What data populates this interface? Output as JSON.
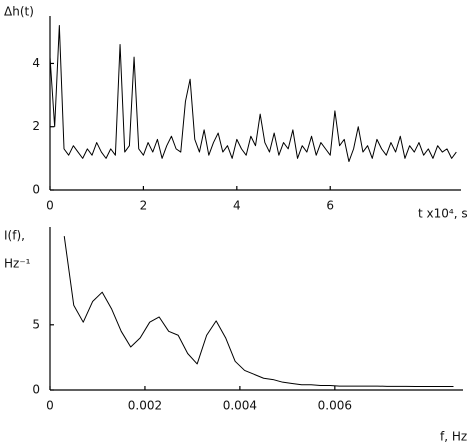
{
  "chart_data": [
    {
      "type": "line",
      "ylabel": "Δh(t)",
      "xlabel": "t x10⁴, s",
      "color": "#000000",
      "x": [
        0.0,
        0.1,
        0.2,
        0.3,
        0.4,
        0.5,
        0.6,
        0.7,
        0.8,
        0.9,
        1.0,
        1.1,
        1.2,
        1.3,
        1.4,
        1.5,
        1.6,
        1.7,
        1.8,
        1.9,
        2.0,
        2.1,
        2.2,
        2.3,
        2.4,
        2.5,
        2.6,
        2.7,
        2.8,
        2.9,
        3.0,
        3.1,
        3.2,
        3.3,
        3.4,
        3.5,
        3.6,
        3.7,
        3.8,
        3.9,
        4.0,
        4.1,
        4.2,
        4.3,
        4.4,
        4.5,
        4.6,
        4.7,
        4.8,
        4.9,
        5.0,
        5.1,
        5.2,
        5.3,
        5.4,
        5.5,
        5.6,
        5.7,
        5.8,
        5.9,
        6.0,
        6.1,
        6.2,
        6.3,
        6.4,
        6.5,
        6.6,
        6.7,
        6.8,
        6.9,
        7.0,
        7.1,
        7.2,
        7.3,
        7.4,
        7.5,
        7.6,
        7.7,
        7.8,
        7.9,
        8.0,
        8.1,
        8.2,
        8.3,
        8.4,
        8.5,
        8.6,
        8.7
      ],
      "values": [
        4.2,
        2.0,
        5.2,
        1.3,
        1.1,
        1.4,
        1.2,
        1.0,
        1.3,
        1.1,
        1.5,
        1.2,
        1.0,
        1.3,
        1.1,
        4.6,
        1.2,
        1.4,
        4.2,
        1.3,
        1.1,
        1.5,
        1.2,
        1.6,
        1.0,
        1.4,
        1.7,
        1.3,
        1.2,
        2.8,
        3.5,
        1.6,
        1.2,
        1.9,
        1.1,
        1.5,
        1.8,
        1.2,
        1.4,
        1.0,
        1.6,
        1.3,
        1.1,
        1.7,
        1.4,
        2.4,
        1.5,
        1.2,
        1.8,
        1.1,
        1.5,
        1.3,
        1.9,
        1.0,
        1.4,
        1.2,
        1.7,
        1.1,
        1.5,
        1.3,
        1.1,
        2.5,
        1.4,
        1.6,
        0.9,
        1.3,
        2.0,
        1.2,
        1.4,
        1.0,
        1.6,
        1.3,
        1.1,
        1.5,
        1.2,
        1.7,
        1.0,
        1.4,
        1.2,
        1.5,
        1.1,
        1.3,
        1.0,
        1.4,
        1.2,
        1.3,
        1.0,
        1.2
      ],
      "xlim": [
        0,
        8.8
      ],
      "ylim": [
        0,
        5.5
      ],
      "xticks": [
        0,
        2,
        4,
        6
      ],
      "yticks": [
        0,
        2,
        4
      ]
    },
    {
      "type": "line",
      "ylabel": "I(f),",
      "ylabel_unit": "Hz⁻¹",
      "xlabel": "f, Hz",
      "color": "#000000",
      "x": [
        0.0003,
        0.0005,
        0.0007,
        0.0009,
        0.0011,
        0.0013,
        0.0015,
        0.0017,
        0.0019,
        0.0021,
        0.0023,
        0.0025,
        0.0027,
        0.0029,
        0.0031,
        0.0033,
        0.0035,
        0.0037,
        0.0039,
        0.0041,
        0.0043,
        0.0045,
        0.0047,
        0.0049,
        0.0051,
        0.0053,
        0.0055,
        0.0057,
        0.0059,
        0.0061,
        0.0063,
        0.0065,
        0.0067,
        0.0069,
        0.0071,
        0.0073,
        0.0075,
        0.0077,
        0.0079,
        0.0081,
        0.0083,
        0.0085
      ],
      "values": [
        11.8,
        6.5,
        5.2,
        6.8,
        7.5,
        6.2,
        4.5,
        3.3,
        4.0,
        5.2,
        5.6,
        4.5,
        4.2,
        2.8,
        2.0,
        4.2,
        5.3,
        4.0,
        2.2,
        1.5,
        1.2,
        0.9,
        0.8,
        0.6,
        0.5,
        0.4,
        0.4,
        0.35,
        0.35,
        0.3,
        0.3,
        0.3,
        0.3,
        0.3,
        0.28,
        0.28,
        0.28,
        0.27,
        0.27,
        0.27,
        0.27,
        0.27
      ],
      "xlim": [
        0,
        0.0087
      ],
      "ylim": [
        0,
        12.5
      ],
      "xticks": [
        0,
        0.002,
        0.004,
        0.006
      ],
      "yticks": [
        0,
        5
      ]
    }
  ]
}
